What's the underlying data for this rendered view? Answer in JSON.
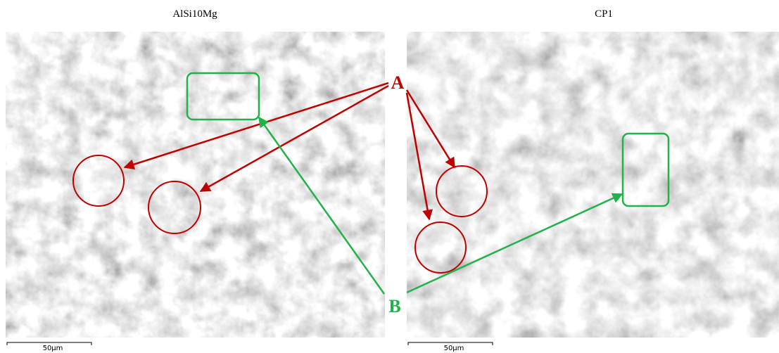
{
  "panels": [
    {
      "title": "AlSi10Mg",
      "scale_bar": "50μm"
    },
    {
      "title": "CP1",
      "scale_bar": "50μm"
    }
  ],
  "annotations": [
    "A",
    "B"
  ]
}
